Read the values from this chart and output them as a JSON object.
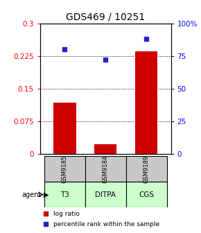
{
  "title": "GDS469 / 10251",
  "categories": [
    "GSM9185",
    "GSM9184",
    "GSM9189"
  ],
  "agents": [
    "T3",
    "DITPA",
    "CGS"
  ],
  "log_ratios": [
    0.118,
    0.022,
    0.235
  ],
  "percentile_ranks": [
    80,
    72,
    88
  ],
  "bar_color": "#cc0000",
  "dot_color": "#2222cc",
  "left_ylim": [
    0,
    0.3
  ],
  "right_ylim": [
    0,
    100
  ],
  "left_yticks": [
    0,
    0.075,
    0.15,
    0.225,
    0.3
  ],
  "left_yticklabels": [
    "0",
    "0.075",
    "0.15",
    "0.225",
    "0.3"
  ],
  "right_yticks": [
    0,
    25,
    50,
    75,
    100
  ],
  "right_yticklabels": [
    "0",
    "25",
    "50",
    "75",
    "100%"
  ],
  "grid_values": [
    0.075,
    0.15,
    0.225
  ],
  "sample_bg": "#c8c8c8",
  "agent_bg_light": "#ccffcc",
  "agent_bg_dark": "#88ee88",
  "title_fontsize": 10,
  "tick_fontsize": 7.5,
  "bar_width": 0.55
}
